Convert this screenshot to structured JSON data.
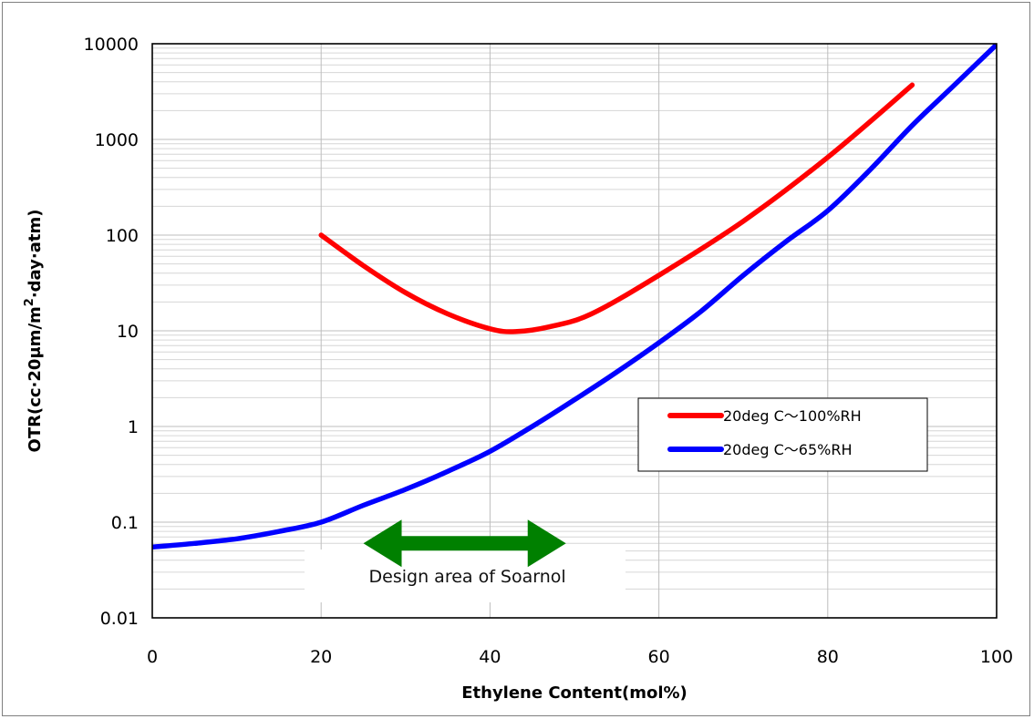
{
  "chart_data": {
    "type": "line",
    "xlabel": "Ethylene Content(mol%)",
    "ylabel_parts": [
      "OTR(cc·20μm/m",
      "2",
      "·day·atm)"
    ],
    "xlim": [
      0,
      100
    ],
    "ylim": [
      0.01,
      10000
    ],
    "yscale": "log",
    "x_ticks": [
      0,
      20,
      40,
      60,
      80,
      100
    ],
    "x_tick_labels": [
      "0",
      "20",
      "40",
      "60",
      "80",
      "100"
    ],
    "y_ticks": [
      0.01,
      0.1,
      1,
      10,
      100,
      1000,
      10000
    ],
    "y_tick_labels": [
      "0.01",
      "0.1",
      "1",
      "10",
      "100",
      "1000",
      "10000"
    ],
    "grid": {
      "vertical": true,
      "horizontal_minor": true
    },
    "legend_position": "center-right",
    "series": [
      {
        "name": "20deg C〜100%RH",
        "color": "#ff0000",
        "x": [
          20,
          25,
          30,
          35,
          40,
          43,
          47,
          52,
          60,
          70,
          80,
          90
        ],
        "y": [
          100,
          48,
          25,
          15,
          10.5,
          9.8,
          11,
          15,
          38,
          140,
          650,
          3700
        ]
      },
      {
        "name": "20deg C〜65%RH",
        "color": "#0000ff",
        "x": [
          0,
          5,
          10,
          15,
          20,
          25,
          30,
          35,
          40,
          45,
          50,
          55,
          60,
          65,
          70,
          75,
          80,
          85,
          90,
          95,
          100
        ],
        "y": [
          0.055,
          0.06,
          0.067,
          0.08,
          0.1,
          0.15,
          0.22,
          0.34,
          0.55,
          1.0,
          1.9,
          3.7,
          7.5,
          16,
          38,
          85,
          180,
          480,
          1400,
          3700,
          9800
        ]
      }
    ],
    "annotation": {
      "text": "Design area of Soarnol",
      "arrow_from_x": 25,
      "arrow_to_x": 49,
      "arrow_y": 0.06,
      "arrow_color": "#008000"
    }
  }
}
